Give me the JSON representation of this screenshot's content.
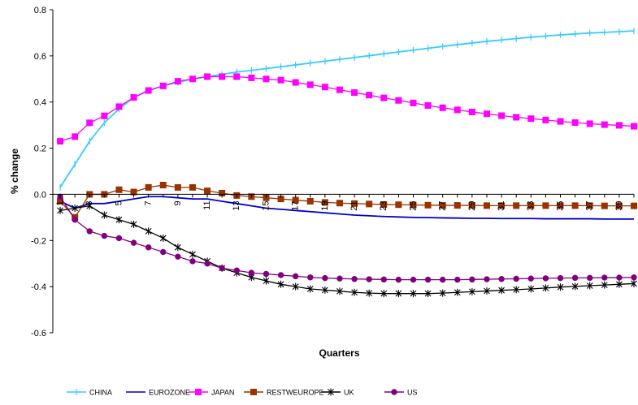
{
  "chart_data": {
    "type": "line",
    "title": "",
    "xlabel": "Quarters",
    "ylabel": "% change",
    "ylim": [
      -0.6,
      0.8
    ],
    "yticks": [
      -0.6,
      -0.4,
      -0.2,
      0.0,
      0.2,
      0.4,
      0.6,
      0.8
    ],
    "ytick_labels": [
      "-0.6",
      "-0.4",
      "-0.2",
      "0.0",
      "0.2",
      "0.4",
      "0.6",
      "0.8"
    ],
    "x": [
      1,
      2,
      3,
      4,
      5,
      6,
      7,
      8,
      9,
      10,
      11,
      12,
      13,
      14,
      15,
      16,
      17,
      18,
      19,
      20,
      21,
      22,
      23,
      24,
      25,
      26,
      27,
      28,
      29,
      30,
      31,
      32,
      33,
      34,
      35,
      36,
      37,
      38,
      39,
      40
    ],
    "xtick_labels": [
      "1",
      "3",
      "5",
      "7",
      "9",
      "11",
      "13",
      "15",
      "17",
      "19",
      "21",
      "23",
      "25",
      "27",
      "29",
      "31",
      "33",
      "35",
      "37",
      "39"
    ],
    "xtick_values": [
      1,
      3,
      5,
      7,
      9,
      11,
      13,
      15,
      17,
      19,
      21,
      23,
      25,
      27,
      29,
      31,
      33,
      35,
      37,
      39
    ],
    "grid": false,
    "legend_position": "bottom",
    "series": [
      {
        "name": "CHINA",
        "color": "#33ccff",
        "marker": "dash",
        "values": [
          0.03,
          0.13,
          0.23,
          0.31,
          0.37,
          0.42,
          0.45,
          0.47,
          0.485,
          0.5,
          0.51,
          0.52,
          0.53,
          0.537,
          0.545,
          0.553,
          0.561,
          0.569,
          0.577,
          0.585,
          0.593,
          0.601,
          0.609,
          0.617,
          0.625,
          0.633,
          0.641,
          0.649,
          0.656,
          0.663,
          0.669,
          0.675,
          0.681,
          0.686,
          0.691,
          0.695,
          0.699,
          0.702,
          0.705,
          0.708
        ]
      },
      {
        "name": "EUROZONE",
        "color": "#0000cc",
        "marker": "none",
        "values": [
          -0.03,
          -0.06,
          -0.04,
          -0.04,
          -0.03,
          -0.02,
          -0.01,
          -0.01,
          -0.015,
          -0.02,
          -0.02,
          -0.03,
          -0.04,
          -0.05,
          -0.06,
          -0.065,
          -0.07,
          -0.075,
          -0.08,
          -0.085,
          -0.09,
          -0.093,
          -0.096,
          -0.098,
          -0.1,
          -0.101,
          -0.102,
          -0.103,
          -0.104,
          -0.104,
          -0.105,
          -0.105,
          -0.105,
          -0.106,
          -0.106,
          -0.106,
          -0.106,
          -0.107,
          -0.107,
          -0.107
        ]
      },
      {
        "name": "JAPAN",
        "color": "#ff00ff",
        "marker": "square",
        "values": [
          0.23,
          0.25,
          0.31,
          0.34,
          0.38,
          0.42,
          0.45,
          0.47,
          0.49,
          0.5,
          0.51,
          0.51,
          0.51,
          0.505,
          0.5,
          0.495,
          0.485,
          0.475,
          0.465,
          0.453,
          0.441,
          0.43,
          0.418,
          0.407,
          0.396,
          0.385,
          0.375,
          0.366,
          0.357,
          0.349,
          0.341,
          0.334,
          0.328,
          0.322,
          0.316,
          0.311,
          0.306,
          0.302,
          0.299,
          0.295
        ]
      },
      {
        "name": "RESTWEUROPE",
        "color": "#993300",
        "marker": "square",
        "values": [
          -0.03,
          -0.1,
          0.0,
          0.0,
          0.02,
          0.01,
          0.03,
          0.04,
          0.03,
          0.03,
          0.015,
          0.005,
          -0.005,
          -0.01,
          -0.015,
          -0.02,
          -0.025,
          -0.03,
          -0.035,
          -0.038,
          -0.04,
          -0.042,
          -0.044,
          -0.045,
          -0.046,
          -0.047,
          -0.048,
          -0.048,
          -0.048,
          -0.049,
          -0.049,
          -0.049,
          -0.049,
          -0.049,
          -0.049,
          -0.049,
          -0.049,
          -0.05,
          -0.05,
          -0.05
        ]
      },
      {
        "name": "UK",
        "color": "#000000",
        "marker": "star",
        "values": [
          -0.07,
          -0.06,
          -0.05,
          -0.09,
          -0.11,
          -0.13,
          -0.16,
          -0.19,
          -0.23,
          -0.26,
          -0.29,
          -0.32,
          -0.34,
          -0.36,
          -0.375,
          -0.39,
          -0.4,
          -0.41,
          -0.415,
          -0.42,
          -0.425,
          -0.428,
          -0.43,
          -0.43,
          -0.43,
          -0.43,
          -0.428,
          -0.425,
          -0.422,
          -0.419,
          -0.416,
          -0.413,
          -0.41,
          -0.406,
          -0.402,
          -0.399,
          -0.396,
          -0.393,
          -0.39,
          -0.387
        ]
      },
      {
        "name": "US",
        "color": "#800080",
        "marker": "circle",
        "values": [
          -0.01,
          -0.11,
          -0.16,
          -0.18,
          -0.19,
          -0.21,
          -0.23,
          -0.25,
          -0.27,
          -0.29,
          -0.3,
          -0.32,
          -0.33,
          -0.34,
          -0.345,
          -0.35,
          -0.355,
          -0.36,
          -0.363,
          -0.365,
          -0.367,
          -0.368,
          -0.369,
          -0.37,
          -0.37,
          -0.37,
          -0.37,
          -0.37,
          -0.369,
          -0.368,
          -0.367,
          -0.366,
          -0.365,
          -0.364,
          -0.363,
          -0.362,
          -0.362,
          -0.361,
          -0.361,
          -0.36
        ]
      }
    ]
  }
}
